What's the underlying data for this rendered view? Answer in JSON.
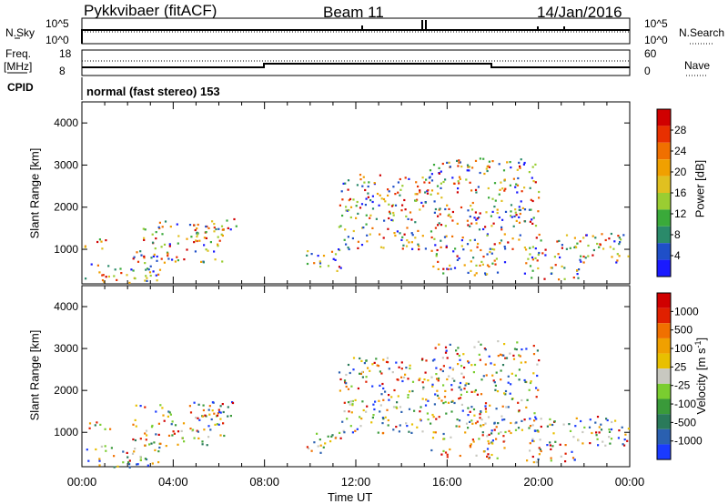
{
  "header": {
    "station": "Pykkvibaer (fitACF)",
    "beam": "Beam 11",
    "date": "14/Jan/2016"
  },
  "top_panels": {
    "nsky_label": "N.Sky",
    "nsky_ticks": [
      "10^5",
      "10^0"
    ],
    "nsearch_label": "N.Search",
    "nsearch_ticks": [
      "10^5",
      "10^0"
    ],
    "freq_label": "Freq.",
    "freq_unit": "[MHz]",
    "freq_ticks": [
      "18",
      "8"
    ],
    "nave_label": "Nave",
    "nave_ticks": [
      "60",
      "0"
    ],
    "cpid_label": "CPID",
    "cpid_value": "normal (fast stereo) 153"
  },
  "chart_data": [
    {
      "type": "heatmap",
      "panel": "power",
      "ylabel": "Slant Range [km]",
      "ylim": [
        180,
        4500
      ],
      "yticks": [
        "1000",
        "2000",
        "3000",
        "4000"
      ],
      "xlim": [
        "00:00",
        "24:00"
      ],
      "colorbar": {
        "label": "Power [dB]",
        "ticks": [
          "28",
          "24",
          "20",
          "16",
          "12",
          "8",
          "4"
        ],
        "colors": [
          "#1a1aff",
          "#1f4fc8",
          "#2a8a6a",
          "#3aaa3a",
          "#9acd32",
          "#e0c020",
          "#f0a000",
          "#f07000",
          "#e83000",
          "#d00000"
        ]
      }
    },
    {
      "type": "heatmap",
      "panel": "velocity",
      "ylabel": "Slant Range [km]",
      "ylim": [
        180,
        4500
      ],
      "yticks": [
        "1000",
        "2000",
        "3000",
        "4000"
      ],
      "xlim": [
        "00:00",
        "24:00"
      ],
      "xlabel": "Time UT",
      "xticks": [
        "00:00",
        "04:00",
        "08:00",
        "12:00",
        "16:00",
        "20:00",
        "00:00"
      ],
      "colorbar": {
        "label": "Velocity [m s",
        "label_sup": "-1",
        "label_close": "]",
        "ticks": [
          "1000",
          "500",
          "100",
          "25",
          "-25",
          "-100",
          "-500",
          "-1000"
        ],
        "colors": [
          "#1a3aff",
          "#2a60b0",
          "#2a7a5a",
          "#3a9a3a",
          "#7acd30",
          "#c8c8c0",
          "#e8c000",
          "#f0a000",
          "#f07000",
          "#e02000",
          "#d00000"
        ]
      }
    }
  ]
}
